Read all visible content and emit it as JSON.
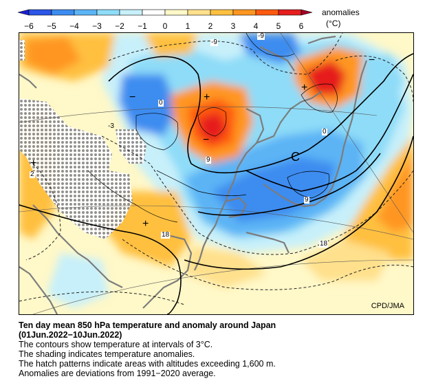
{
  "legend": {
    "title": "anomalies",
    "unit": "(°C)",
    "ticks": [
      "−6",
      "−5",
      "−4",
      "−3",
      "−2",
      "−1",
      "0",
      "1",
      "2",
      "3",
      "4",
      "5",
      "6"
    ],
    "colors": [
      "#1e1ed2",
      "#2a55e6",
      "#3c8cf0",
      "#5cb4f5",
      "#8edcf8",
      "#c8f0fa",
      "#ffffff",
      "#fff8c8",
      "#ffe08c",
      "#ffc040",
      "#ff9620",
      "#ff5a10",
      "#e61e1e",
      "#a00028"
    ]
  },
  "map": {
    "credit": "CPD/JMA",
    "contour_labels": [
      "-9",
      "-9",
      "0",
      "-3",
      "2",
      "9",
      "0",
      "9",
      "18",
      "18"
    ],
    "symbols": [
      "C",
      "+",
      "+",
      "+",
      "+",
      "−",
      "−",
      "−"
    ]
  },
  "caption": {
    "title_line1": "Ten day mean 850 hPa temperature and anomaly around Japan",
    "title_line2": "(01Jun.2022−10Jun.2022)",
    "lines": [
      "The contours show temperature at intervals of 3°C.",
      "The shading indicates temperature anomalies.",
      "The hatch patterns indicate areas with altitudes exceeding 1,600 m.",
      "Anomalies are deviations from 1991−2020 average."
    ]
  }
}
